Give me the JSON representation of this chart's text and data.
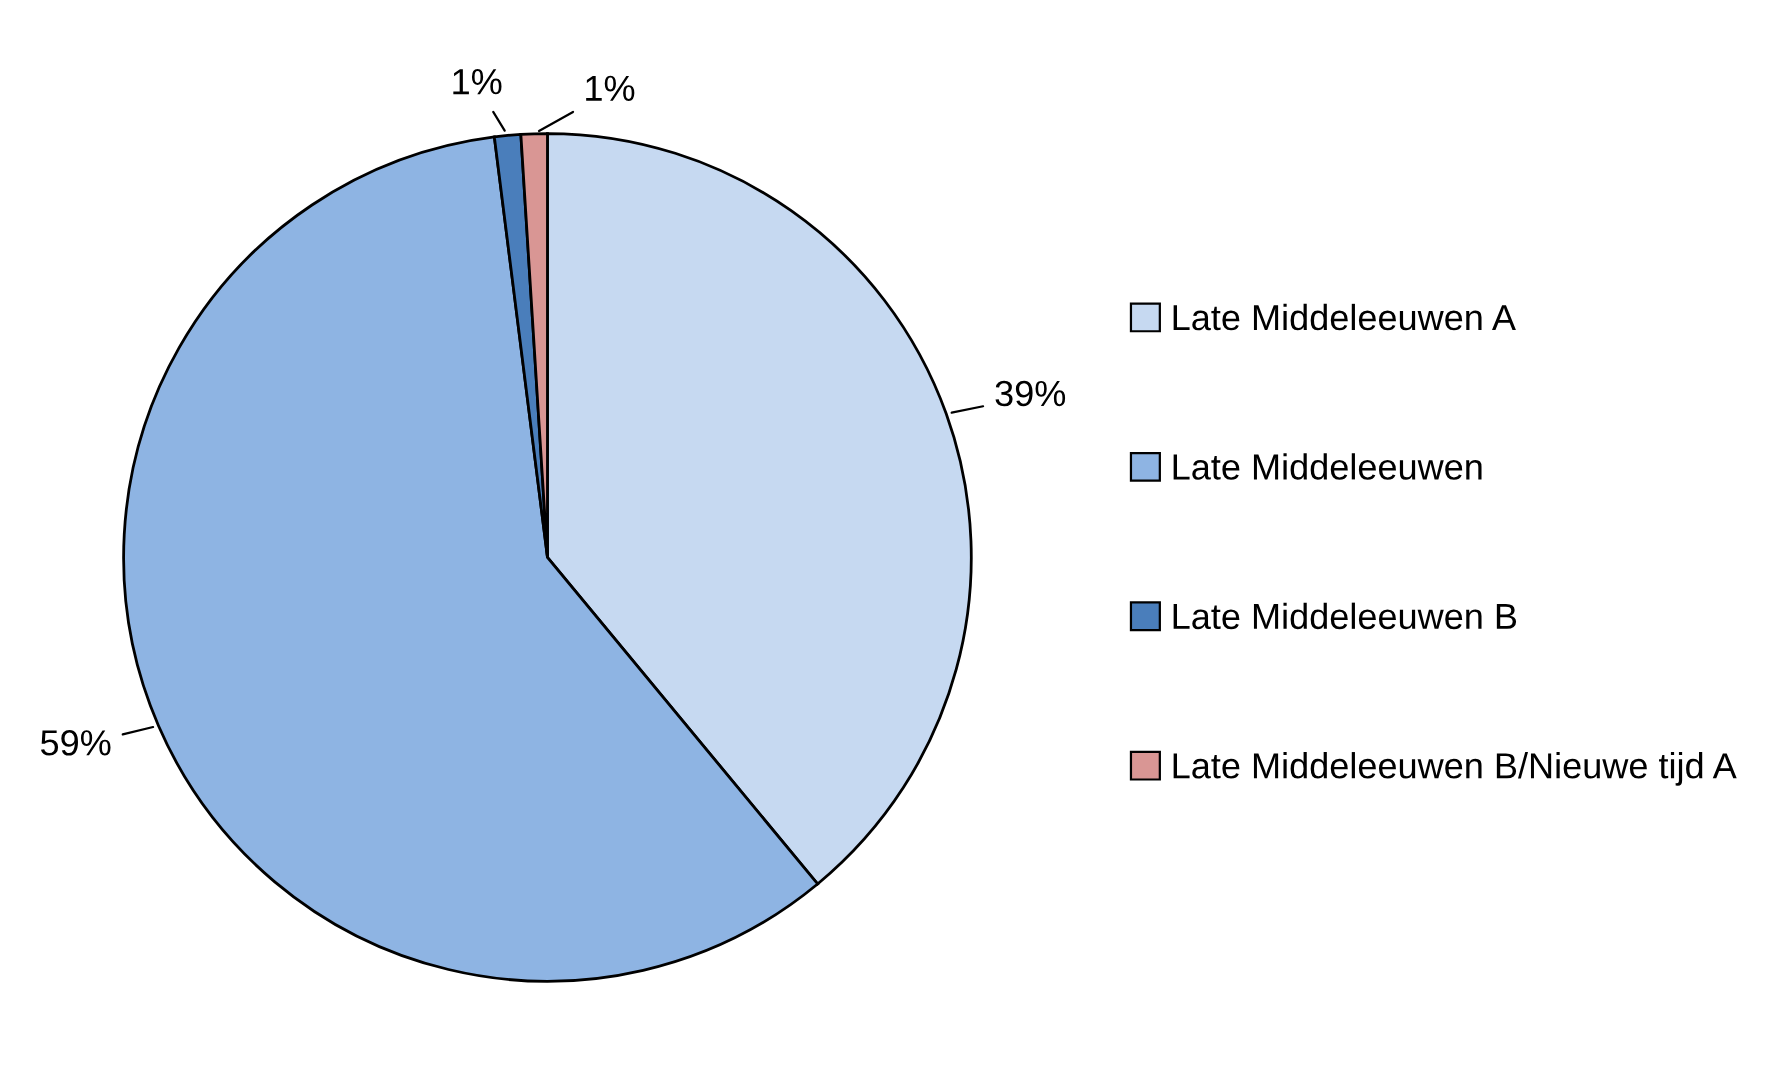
{
  "chart_data": {
    "type": "pie",
    "categories": [
      "Late Middeleeuwen A",
      "Late Middeleeuwen",
      "Late Middeleeuwen B",
      "Late Middeleeuwen B/Nieuwe tijd A"
    ],
    "values": [
      39,
      59,
      1,
      1
    ],
    "value_labels": [
      "39%",
      "59%",
      "1%",
      "1%"
    ],
    "colors": [
      "#c6d9f1",
      "#8eb4e3",
      "#4a7ebb",
      "#d99694"
    ],
    "legend": "right"
  }
}
